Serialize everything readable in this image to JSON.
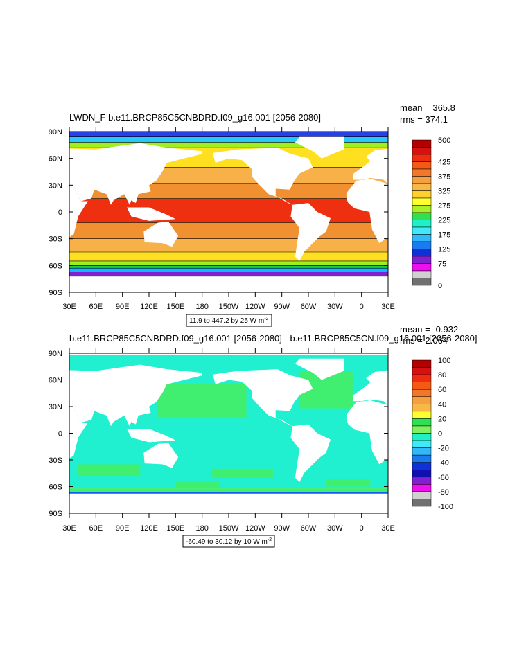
{
  "panels": [
    {
      "title": "LWDN_F b.e11.BRCP85C5CNBDRD.f09_g16.001 [2056-2080]",
      "mean": "mean = 365.8",
      "rms": "rms = 374.1",
      "lat_labels": [
        "90N",
        "60N",
        "30N",
        "0",
        "30S",
        "60S",
        "90S"
      ],
      "lon_labels": [
        "30E",
        "60E",
        "90E",
        "120E",
        "150E",
        "180",
        "150W",
        "120W",
        "90W",
        "60W",
        "30W",
        "0",
        "30E"
      ],
      "colorbar_labels": [
        500,
        425,
        375,
        325,
        275,
        225,
        175,
        125,
        75,
        0
      ],
      "colorbar_colors": [
        "#b40000",
        "#d81010",
        "#f02c10",
        "#f55a14",
        "#f07828",
        "#f5a040",
        "#f8b848",
        "#ffd030",
        "#ffff30",
        "#a8f028",
        "#30e050",
        "#20f0c8",
        "#40e8f8",
        "#30b8f8",
        "#1a7af0",
        "#1030d8",
        "#8020d0",
        "#ee10ee",
        "#d0d0d0",
        "#707070"
      ],
      "info": "11.9 to 447.2 by 25  W m",
      "info_sup": "-2"
    },
    {
      "title": "b.e11.BRCP85C5CNBDRD.f09_g16.001 [2056-2080] - b.e11.BRCP85C5CN.f09_g16.001 [2056-2080]",
      "mean": "mean = -0.932",
      "rms": "rms = 2.064",
      "lat_labels": [
        "90N",
        "60N",
        "30N",
        "0",
        "30S",
        "60S",
        "90S"
      ],
      "lon_labels": [
        "30E",
        "60E",
        "90E",
        "120E",
        "150E",
        "180",
        "150W",
        "120W",
        "90W",
        "60W",
        "30W",
        "0",
        "30E"
      ],
      "colorbar_labels": [
        100,
        80,
        60,
        40,
        20,
        0,
        -20,
        -40,
        -60,
        -80,
        -100
      ],
      "colorbar_colors": [
        "#b40000",
        "#d81010",
        "#f02c10",
        "#f55a14",
        "#f07828",
        "#f5a040",
        "#f8b848",
        "#ffff30",
        "#30e050",
        "#80f060",
        "#20f0c8",
        "#40e8f8",
        "#30b8f8",
        "#1a7af0",
        "#1030d8",
        "#1010b0",
        "#8020d0",
        "#ee10ee",
        "#d0d0d0",
        "#707070"
      ],
      "info": "-60.49 to 30.12 by 10  W m",
      "info_sup": "-2"
    }
  ]
}
